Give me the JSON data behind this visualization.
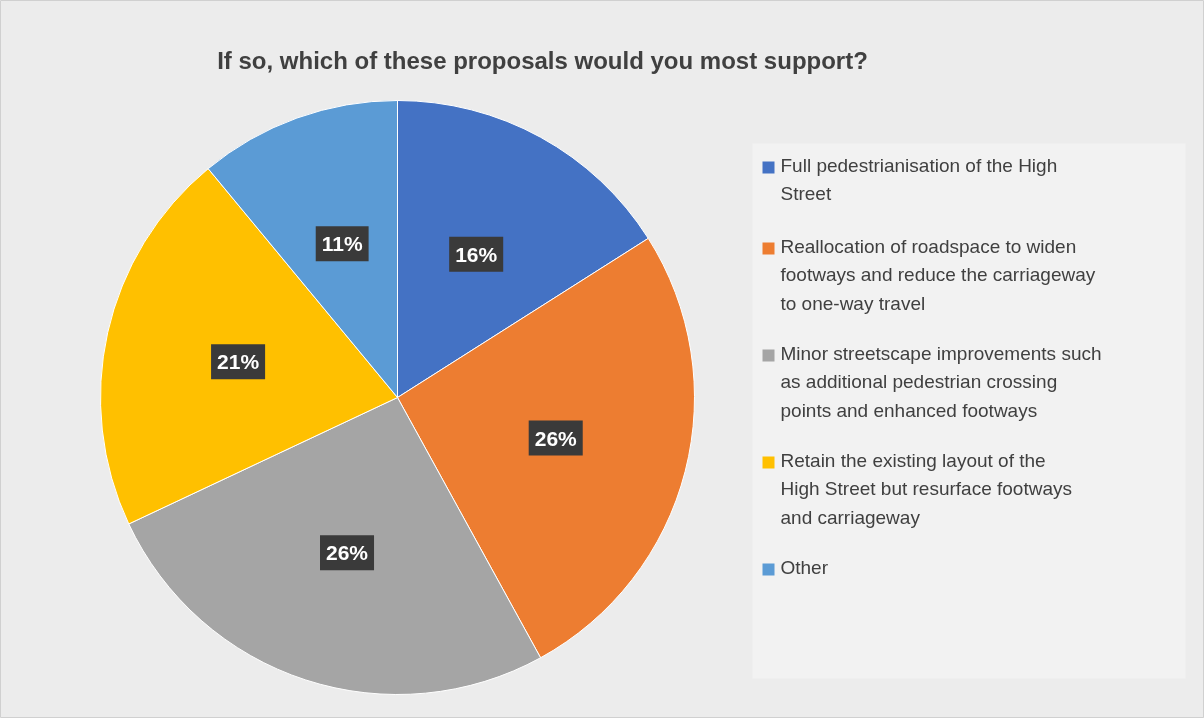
{
  "chart_data": {
    "type": "pie",
    "title": "If so, which of these proposals would you most support?",
    "categories": [
      "Full pedestrianisation of the High Street",
      "Reallocation of roadspace to widen footways and reduce the carriageway to one-way travel",
      "Minor streetscape improvements such as additional pedestrian crossing points and enhanced footways",
      "Retain the existing layout of the High Street but resurface footways and carriageway",
      "Other"
    ],
    "values": [
      16,
      26,
      26,
      21,
      11
    ],
    "colors": [
      "#4472c4",
      "#ed7d31",
      "#a5a5a5",
      "#ffc000",
      "#5b9bd5"
    ],
    "value_labels": [
      "16%",
      "26%",
      "26%",
      "21%",
      "11%"
    ],
    "legend": "right"
  }
}
